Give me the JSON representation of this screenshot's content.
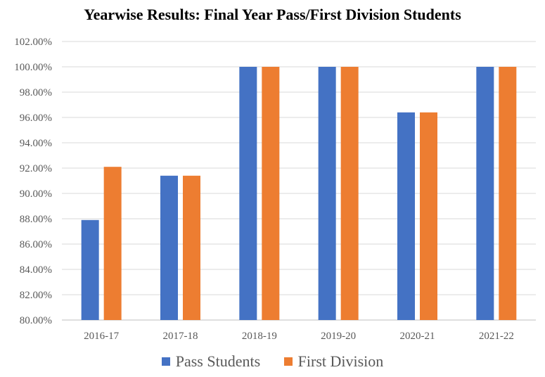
{
  "chart_data": {
    "type": "bar",
    "title": "Yearwise Results: Final Year Pass/First Division Students",
    "xlabel": "",
    "ylabel": "",
    "categories": [
      "2016-17",
      "2017-18",
      "2018-19",
      "2019-20",
      "2020-21",
      "2021-22"
    ],
    "series": [
      {
        "name": "Pass Students",
        "color": "#4472C4",
        "values": [
          87.9,
          91.4,
          100.0,
          100.0,
          96.4,
          100.0
        ]
      },
      {
        "name": "First Division",
        "color": "#ED7D31",
        "values": [
          92.1,
          91.4,
          100.0,
          100.0,
          96.4,
          100.0
        ]
      }
    ],
    "ylim": [
      80,
      102
    ],
    "yticks": [
      "80.00%",
      "82.00%",
      "84.00%",
      "86.00%",
      "88.00%",
      "90.00%",
      "92.00%",
      "94.00%",
      "96.00%",
      "98.00%",
      "100.00%",
      "102.00%"
    ],
    "ytick_values": [
      80,
      82,
      84,
      86,
      88,
      90,
      92,
      94,
      96,
      98,
      100,
      102
    ],
    "grid": true,
    "legend_position": "bottom"
  }
}
